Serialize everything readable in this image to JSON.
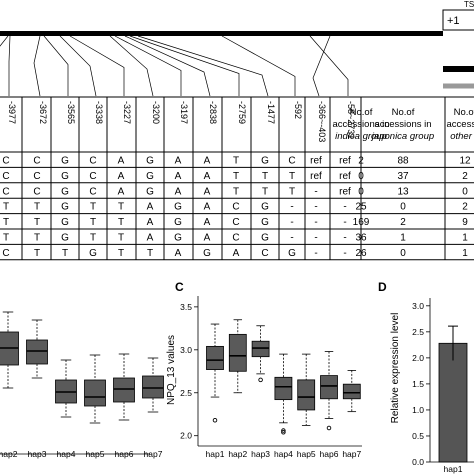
{
  "gene_model": {
    "tss_label": "TS",
    "plus_one_label": "+1"
  },
  "table": {
    "positions": [
      "-3977",
      "-3672",
      "-3565",
      "-3338",
      "-3227",
      "-3200",
      "-3197",
      "-2838",
      "-2759",
      "-1477",
      "-592",
      "-366~-403",
      "-58~2731"
    ],
    "group_headers": [
      [
        "No.of",
        "accessions in",
        "indica group"
      ],
      [
        "No.of",
        "accessions in",
        "japonica group"
      ],
      [
        "No.of",
        "accessio",
        "other g"
      ]
    ],
    "rows": [
      {
        "alleles": [
          "C",
          "C",
          "G",
          "C",
          "A",
          "G",
          "A",
          "A",
          "T",
          "G",
          "C",
          "ref",
          "ref"
        ],
        "counts": [
          "2",
          "88",
          "12"
        ]
      },
      {
        "alleles": [
          "C",
          "C",
          "G",
          "C",
          "A",
          "G",
          "A",
          "A",
          "T",
          "T",
          "T",
          "ref",
          "ref"
        ],
        "counts": [
          "0",
          "37",
          "2"
        ]
      },
      {
        "alleles": [
          "C",
          "C",
          "G",
          "C",
          "A",
          "G",
          "A",
          "A",
          "T",
          "T",
          "T",
          "-",
          "ref"
        ],
        "counts": [
          "0",
          "13",
          "0"
        ]
      },
      {
        "alleles": [
          "T",
          "T",
          "G",
          "T",
          "T",
          "A",
          "G",
          "A",
          "C",
          "G",
          "-",
          "-",
          "-"
        ],
        "counts": [
          "25",
          "0",
          "2"
        ]
      },
      {
        "alleles": [
          "T",
          "T",
          "G",
          "T",
          "T",
          "A",
          "G",
          "A",
          "C",
          "G",
          "-",
          "-",
          "-"
        ],
        "counts": [
          "169",
          "2",
          "9"
        ]
      },
      {
        "alleles": [
          "T",
          "T",
          "G",
          "T",
          "T",
          "A",
          "G",
          "A",
          "C",
          "G",
          "-",
          "-",
          "-"
        ],
        "counts": [
          "36",
          "1",
          "1"
        ]
      },
      {
        "alleles": [
          "C",
          "T",
          "T",
          "G",
          "T",
          "T",
          "A",
          "G",
          "A",
          "C",
          "G",
          "-",
          "-"
        ],
        "counts": [
          "26",
          "0",
          "1"
        ]
      }
    ]
  },
  "panels": {
    "c_label": "C",
    "d_label": "D"
  },
  "chart_data": [
    {
      "type": "box",
      "categories": [
        "hap2",
        "hap3",
        "hap4",
        "hap5",
        "hap6",
        "hap7"
      ],
      "series": [
        {
          "whisker_low": [
            2.62,
            2.72,
            2.33,
            2.27,
            2.3,
            2.38
          ],
          "q1": [
            2.85,
            2.86,
            2.47,
            2.44,
            2.48,
            2.52
          ],
          "median": [
            3.02,
            2.99,
            2.58,
            2.53,
            2.61,
            2.62
          ],
          "q3": [
            3.18,
            3.1,
            2.7,
            2.7,
            2.72,
            2.74
          ],
          "whisker_high": [
            3.38,
            3.3,
            2.9,
            2.95,
            2.96,
            2.92
          ]
        }
      ],
      "ylim": [
        2.1,
        3.5
      ]
    },
    {
      "type": "box",
      "categories": [
        "hap1",
        "hap2",
        "hap3",
        "hap4",
        "hap5",
        "hap6",
        "hap7"
      ],
      "ylabel": "NPQ_13 values",
      "yticks": [
        "2.0",
        "2.5",
        "3.0",
        "3.5"
      ],
      "ylim": [
        1.95,
        3.58
      ],
      "series": [
        {
          "whisker_low": [
            2.45,
            2.5,
            2.72,
            2.15,
            2.12,
            2.2,
            2.28
          ],
          "q1": [
            2.77,
            2.75,
            2.92,
            2.42,
            2.3,
            2.43,
            2.43
          ],
          "median": [
            2.88,
            2.93,
            3.02,
            2.57,
            2.45,
            2.58,
            2.5
          ],
          "q3": [
            3.04,
            3.18,
            3.1,
            2.68,
            2.65,
            2.7,
            2.6
          ],
          "whisker_high": [
            3.3,
            3.35,
            3.28,
            2.95,
            2.95,
            2.98,
            2.76
          ]
        }
      ],
      "outliers": [
        {
          "category": "hap1",
          "value": 2.18
        },
        {
          "category": "hap3",
          "value": 2.65
        },
        {
          "category": "hap4",
          "value": 2.06
        },
        {
          "category": "hap4",
          "value": 2.04
        },
        {
          "category": "hap6",
          "value": 2.09
        }
      ],
      "colors": {
        "box": "#555555"
      }
    },
    {
      "type": "bar",
      "categories": [
        "hap1"
      ],
      "values": [
        2.28
      ],
      "errors": [
        0.33
      ],
      "ylabel": "Relative expression level",
      "yticks": [
        "0.0",
        "0.5",
        "1.0",
        "1.5",
        "2.0",
        "2.5",
        "3.0"
      ],
      "ylim": [
        0,
        3.15
      ],
      "colors": {
        "bar": "#555555"
      }
    }
  ]
}
